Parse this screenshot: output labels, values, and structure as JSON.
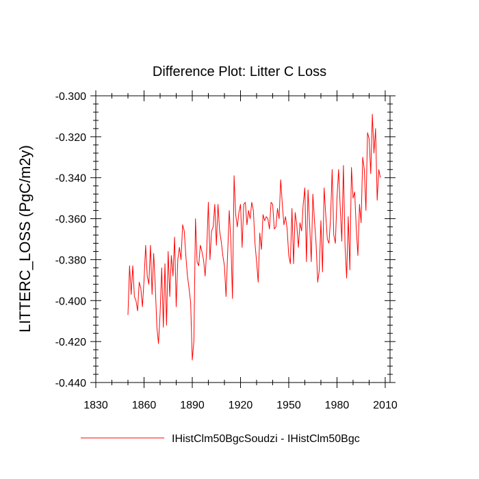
{
  "chart_data": {
    "type": "line",
    "title": "Difference Plot: Litter C Loss",
    "xlabel": "",
    "ylabel": "LITTERC_LOSS  (PgC/m2y)",
    "xlim": [
      1830,
      2013
    ],
    "ylim": [
      -0.44,
      -0.3
    ],
    "x_ticks": [
      1830,
      1860,
      1890,
      1920,
      1950,
      1980,
      2010
    ],
    "y_ticks": [
      -0.3,
      -0.32,
      -0.34,
      -0.36,
      -0.38,
      -0.4,
      -0.42,
      -0.44
    ],
    "x_tick_labels": [
      "1830",
      "1860",
      "1890",
      "1920",
      "1950",
      "1980",
      "2010"
    ],
    "y_tick_labels": [
      "-0.300",
      "-0.320",
      "-0.340",
      "-0.360",
      "-0.380",
      "-0.400",
      "-0.420",
      "-0.440"
    ],
    "grid": false,
    "legend_position": "bottom",
    "series": [
      {
        "name": "IHistClm50BgcSoudzi - IHistClm50Bgc",
        "color": "#ff0000",
        "x_start": 1850,
        "x_step": 1,
        "values": [
          -0.407,
          -0.383,
          -0.397,
          -0.383,
          -0.398,
          -0.4,
          -0.405,
          -0.391,
          -0.394,
          -0.403,
          -0.39,
          -0.373,
          -0.388,
          -0.392,
          -0.373,
          -0.397,
          -0.377,
          -0.393,
          -0.413,
          -0.421,
          -0.406,
          -0.384,
          -0.413,
          -0.382,
          -0.412,
          -0.376,
          -0.398,
          -0.378,
          -0.388,
          -0.369,
          -0.403,
          -0.38,
          -0.374,
          -0.38,
          -0.363,
          -0.366,
          -0.378,
          -0.388,
          -0.394,
          -0.401,
          -0.429,
          -0.42,
          -0.36,
          -0.381,
          -0.383,
          -0.373,
          -0.376,
          -0.38,
          -0.388,
          -0.375,
          -0.352,
          -0.38,
          -0.366,
          -0.364,
          -0.353,
          -0.373,
          -0.353,
          -0.366,
          -0.371,
          -0.378,
          -0.383,
          -0.398,
          -0.377,
          -0.356,
          -0.371,
          -0.399,
          -0.339,
          -0.358,
          -0.364,
          -0.357,
          -0.353,
          -0.374,
          -0.353,
          -0.352,
          -0.363,
          -0.356,
          -0.36,
          -0.352,
          -0.356,
          -0.372,
          -0.381,
          -0.391,
          -0.367,
          -0.375,
          -0.358,
          -0.361,
          -0.359,
          -0.36,
          -0.365,
          -0.352,
          -0.353,
          -0.365,
          -0.364,
          -0.355,
          -0.36,
          -0.341,
          -0.353,
          -0.363,
          -0.359,
          -0.365,
          -0.378,
          -0.382,
          -0.355,
          -0.382,
          -0.357,
          -0.363,
          -0.374,
          -0.362,
          -0.366,
          -0.353,
          -0.345,
          -0.381,
          -0.346,
          -0.363,
          -0.381,
          -0.348,
          -0.361,
          -0.372,
          -0.391,
          -0.385,
          -0.361,
          -0.386,
          -0.345,
          -0.358,
          -0.37,
          -0.372,
          -0.36,
          -0.336,
          -0.368,
          -0.372,
          -0.35,
          -0.336,
          -0.354,
          -0.371,
          -0.334,
          -0.373,
          -0.389,
          -0.359,
          -0.385,
          -0.335,
          -0.35,
          -0.347,
          -0.365,
          -0.378,
          -0.353,
          -0.362,
          -0.33,
          -0.336,
          -0.356,
          -0.318,
          -0.321,
          -0.338,
          -0.309,
          -0.328,
          -0.316,
          -0.351,
          -0.336,
          -0.34
        ]
      }
    ]
  }
}
